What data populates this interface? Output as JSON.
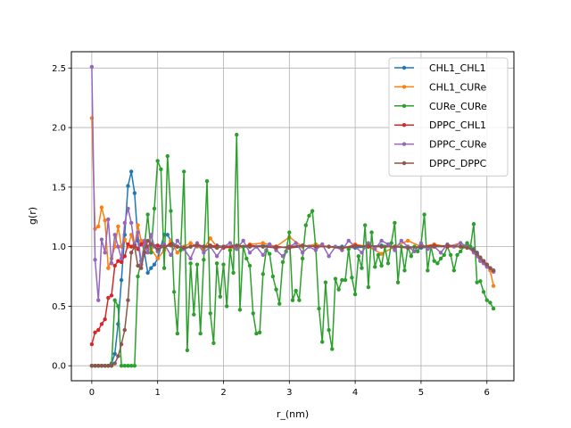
{
  "chart_data": {
    "type": "line",
    "title": "",
    "xlabel": "r_(nm)",
    "ylabel": "g(r)",
    "xlim": [
      -0.31,
      6.41
    ],
    "ylim": [
      -0.126,
      2.637
    ],
    "xticks": [
      0,
      1,
      2,
      3,
      4,
      5,
      6
    ],
    "yticks": [
      0.0,
      0.5,
      1.0,
      1.5,
      2.0,
      2.5
    ],
    "xtick_labels": [
      "0",
      "1",
      "2",
      "3",
      "4",
      "5",
      "6"
    ],
    "ytick_labels": [
      "0.0",
      "0.5",
      "1.0",
      "1.5",
      "2.0",
      "2.5"
    ],
    "grid": true,
    "legend_position": "upper-right",
    "series": [
      {
        "name": "CHL1_CHL1",
        "color": "#1f77b4",
        "x": [
          0.0,
          0.05,
          0.1,
          0.15,
          0.2,
          0.25,
          0.3,
          0.35,
          0.4,
          0.45,
          0.5,
          0.55,
          0.6,
          0.65,
          0.7,
          0.75,
          0.8,
          0.85,
          0.9,
          0.95,
          1.0,
          1.05,
          1.1,
          1.15,
          1.2,
          1.3,
          1.4,
          1.5,
          1.6,
          1.7,
          1.8,
          1.9,
          2.0,
          2.2,
          2.4,
          2.6,
          2.8,
          3.0,
          3.2,
          3.4,
          3.6,
          3.8,
          4.0,
          4.2,
          4.4,
          4.6,
          4.8,
          5.0,
          5.2,
          5.4,
          5.6,
          5.7,
          5.8,
          5.85,
          5.9,
          5.95,
          6.0,
          6.05,
          6.1
        ],
        "y": [
          0.0,
          0.0,
          0.0,
          0.0,
          0.0,
          0.0,
          0.02,
          0.1,
          0.35,
          0.72,
          1.1,
          1.51,
          1.63,
          1.45,
          1.05,
          0.85,
          0.95,
          0.78,
          0.82,
          0.85,
          0.9,
          1.0,
          1.1,
          1.1,
          1.05,
          1.0,
          0.98,
          1.0,
          1.02,
          0.99,
          1.0,
          1.01,
          1.0,
          0.99,
          1.0,
          1.01,
          1.0,
          0.99,
          1.0,
          1.01,
          1.0,
          1.0,
          0.99,
          1.0,
          1.01,
          1.0,
          1.0,
          0.99,
          1.0,
          1.0,
          1.0,
          1.0,
          0.98,
          0.95,
          0.9,
          0.88,
          0.85,
          0.82,
          0.8
        ]
      },
      {
        "name": "CHL1_CURe",
        "color": "#ff7f0e",
        "x": [
          0.0,
          0.05,
          0.1,
          0.15,
          0.2,
          0.25,
          0.3,
          0.35,
          0.4,
          0.45,
          0.5,
          0.55,
          0.6,
          0.65,
          0.7,
          0.75,
          0.8,
          0.9,
          1.0,
          1.1,
          1.2,
          1.3,
          1.4,
          1.5,
          1.6,
          1.7,
          1.8,
          1.9,
          2.0,
          2.2,
          2.4,
          2.6,
          2.8,
          3.0,
          3.2,
          3.4,
          3.6,
          3.8,
          4.0,
          4.2,
          4.4,
          4.6,
          4.8,
          5.0,
          5.2,
          5.4,
          5.6,
          5.7,
          5.8,
          5.85,
          5.9,
          5.95,
          6.0,
          6.05,
          6.1
        ],
        "y": [
          2.08,
          1.15,
          1.17,
          1.33,
          1.22,
          0.82,
          0.9,
          1.0,
          1.17,
          1.0,
          1.06,
          1.0,
          1.1,
          1.0,
          1.18,
          1.05,
          0.95,
          0.98,
          0.9,
          0.97,
          1.05,
          0.95,
          1.0,
          1.03,
          1.0,
          0.98,
          1.07,
          1.0,
          1.0,
          0.98,
          1.02,
          1.03,
          1.0,
          1.08,
          1.0,
          1.02,
          1.0,
          0.98,
          1.02,
          1.0,
          0.94,
          1.0,
          1.05,
          1.0,
          1.02,
          1.0,
          1.03,
          1.0,
          0.96,
          0.92,
          0.88,
          0.86,
          0.84,
          0.8,
          0.67
        ]
      },
      {
        "name": "CURe_CURe",
        "color": "#2ca02c",
        "x": [
          0.0,
          0.05,
          0.1,
          0.15,
          0.2,
          0.25,
          0.3,
          0.35,
          0.4,
          0.45,
          0.5,
          0.55,
          0.6,
          0.65,
          0.7,
          0.75,
          0.8,
          0.85,
          0.9,
          0.95,
          1.0,
          1.05,
          1.1,
          1.15,
          1.2,
          1.25,
          1.3,
          1.35,
          1.4,
          1.45,
          1.5,
          1.55,
          1.6,
          1.65,
          1.7,
          1.75,
          1.8,
          1.85,
          1.9,
          1.95,
          2.0,
          2.05,
          2.1,
          2.15,
          2.2,
          2.25,
          2.3,
          2.35,
          2.4,
          2.45,
          2.5,
          2.55,
          2.6,
          2.65,
          2.7,
          2.75,
          2.8,
          2.85,
          2.9,
          2.95,
          3.0,
          3.05,
          3.1,
          3.15,
          3.2,
          3.25,
          3.3,
          3.35,
          3.4,
          3.45,
          3.5,
          3.55,
          3.6,
          3.65,
          3.7,
          3.75,
          3.8,
          3.85,
          3.9,
          3.95,
          4.0,
          4.05,
          4.1,
          4.15,
          4.2,
          4.25,
          4.3,
          4.35,
          4.4,
          4.45,
          4.5,
          4.55,
          4.6,
          4.65,
          4.7,
          4.75,
          4.8,
          4.85,
          4.9,
          4.95,
          5.0,
          5.05,
          5.1,
          5.15,
          5.2,
          5.25,
          5.3,
          5.35,
          5.4,
          5.45,
          5.5,
          5.55,
          5.6,
          5.65,
          5.7,
          5.75,
          5.8,
          5.85,
          5.9,
          5.95,
          6.0,
          6.05,
          6.1
        ],
        "y": [
          0.0,
          0.0,
          0.0,
          0.0,
          0.0,
          0.0,
          0.0,
          0.55,
          0.5,
          0.0,
          0.0,
          0.0,
          0.0,
          0.0,
          0.75,
          0.88,
          1.0,
          1.27,
          0.95,
          1.32,
          1.72,
          1.65,
          0.82,
          1.76,
          1.3,
          0.62,
          0.27,
          0.97,
          1.63,
          0.13,
          0.86,
          0.43,
          0.85,
          0.27,
          0.89,
          1.55,
          0.44,
          0.19,
          0.86,
          0.58,
          0.85,
          0.5,
          0.97,
          0.78,
          1.94,
          0.47,
          1.0,
          0.9,
          0.84,
          0.44,
          0.27,
          0.28,
          0.77,
          0.97,
          0.94,
          0.75,
          0.64,
          0.52,
          0.87,
          0.96,
          1.12,
          0.55,
          0.63,
          0.55,
          0.9,
          1.18,
          1.26,
          1.3,
          1.0,
          0.48,
          0.2,
          0.7,
          0.3,
          0.14,
          0.73,
          0.64,
          0.72,
          0.72,
          0.98,
          0.74,
          0.6,
          0.92,
          0.82,
          1.18,
          0.66,
          1.12,
          0.83,
          0.93,
          0.84,
          1.0,
          0.86,
          1.03,
          1.2,
          0.7,
          1.0,
          0.8,
          1.0,
          0.92,
          1.0,
          0.96,
          1.02,
          1.27,
          0.8,
          1.0,
          0.88,
          0.86,
          0.9,
          0.93,
          1.0,
          0.93,
          0.8,
          0.93,
          0.96,
          1.0,
          1.03,
          1.0,
          1.19,
          0.7,
          0.71,
          0.62,
          0.55,
          0.53,
          0.48
        ]
      },
      {
        "name": "DPPC_CHL1",
        "color": "#d62728",
        "x": [
          0.0,
          0.05,
          0.1,
          0.15,
          0.2,
          0.25,
          0.3,
          0.35,
          0.4,
          0.45,
          0.5,
          0.55,
          0.6,
          0.65,
          0.7,
          0.75,
          0.8,
          0.85,
          0.9,
          1.0,
          1.1,
          1.2,
          1.3,
          1.4,
          1.5,
          1.6,
          1.7,
          1.8,
          1.9,
          2.0,
          2.2,
          2.4,
          2.6,
          2.8,
          3.0,
          3.2,
          3.4,
          3.6,
          3.8,
          4.0,
          4.2,
          4.4,
          4.6,
          4.8,
          5.0,
          5.2,
          5.4,
          5.6,
          5.7,
          5.8,
          5.85,
          5.9,
          5.95,
          6.0,
          6.05,
          6.1
        ],
        "y": [
          0.18,
          0.28,
          0.3,
          0.35,
          0.39,
          0.57,
          0.59,
          0.84,
          0.88,
          0.87,
          0.92,
          1.02,
          1.0,
          1.02,
          0.98,
          1.02,
          1.04,
          1.0,
          1.02,
          1.01,
          1.0,
          1.02,
          1.0,
          0.99,
          1.0,
          1.02,
          1.0,
          1.01,
          1.0,
          0.99,
          1.0,
          1.01,
          1.0,
          1.0,
          0.99,
          1.01,
          1.0,
          1.0,
          0.99,
          1.01,
          1.0,
          1.0,
          1.0,
          0.99,
          1.0,
          1.01,
          1.0,
          1.0,
          0.99,
          0.97,
          0.93,
          0.9,
          0.87,
          0.84,
          0.82,
          0.79
        ]
      },
      {
        "name": "DPPC_CURe",
        "color": "#9467bd",
        "x": [
          0.0,
          0.05,
          0.1,
          0.15,
          0.2,
          0.25,
          0.3,
          0.35,
          0.4,
          0.45,
          0.5,
          0.55,
          0.6,
          0.65,
          0.7,
          0.75,
          0.8,
          0.85,
          0.9,
          0.95,
          1.0,
          1.1,
          1.2,
          1.3,
          1.4,
          1.5,
          1.6,
          1.7,
          1.8,
          1.9,
          2.0,
          2.1,
          2.2,
          2.3,
          2.4,
          2.5,
          2.6,
          2.7,
          2.8,
          2.9,
          3.0,
          3.1,
          3.2,
          3.3,
          3.4,
          3.5,
          3.6,
          3.7,
          3.8,
          3.9,
          4.0,
          4.1,
          4.2,
          4.3,
          4.4,
          4.5,
          4.6,
          4.7,
          4.8,
          4.9,
          5.0,
          5.1,
          5.2,
          5.3,
          5.4,
          5.5,
          5.6,
          5.7,
          5.8,
          5.85,
          5.9,
          5.95,
          6.0,
          6.05,
          6.1
        ],
        "y": [
          2.51,
          0.89,
          0.55,
          1.06,
          0.95,
          1.23,
          0.86,
          1.1,
          1.0,
          0.9,
          1.2,
          1.32,
          1.2,
          1.0,
          1.12,
          0.85,
          1.05,
          0.95,
          1.1,
          1.0,
          0.96,
          1.02,
          0.93,
          1.05,
          0.98,
          0.9,
          1.03,
          0.95,
          1.0,
          0.92,
          1.0,
          1.03,
          0.98,
          1.05,
          0.95,
          1.0,
          0.93,
          1.02,
          0.97,
          0.92,
          1.0,
          1.03,
          0.95,
          1.0,
          0.97,
          1.02,
          0.92,
          1.0,
          0.97,
          1.05,
          1.0,
          0.95,
          1.03,
          0.98,
          1.05,
          1.02,
          0.97,
          1.05,
          1.0,
          0.96,
          1.03,
          0.98,
          1.0,
          0.95,
          1.02,
          1.0,
          1.03,
          1.0,
          0.95,
          0.92,
          0.88,
          0.86,
          0.83,
          0.82,
          0.79
        ]
      },
      {
        "name": "DPPC_DPPC",
        "color": "#8c564b",
        "x": [
          0.0,
          0.05,
          0.1,
          0.15,
          0.2,
          0.25,
          0.3,
          0.35,
          0.4,
          0.45,
          0.5,
          0.55,
          0.6,
          0.65,
          0.7,
          0.75,
          0.8,
          0.85,
          0.9,
          1.0,
          1.1,
          1.2,
          1.3,
          1.4,
          1.5,
          1.6,
          1.7,
          1.8,
          1.9,
          2.0,
          2.2,
          2.4,
          2.6,
          2.8,
          3.0,
          3.2,
          3.4,
          3.6,
          3.8,
          4.0,
          4.2,
          4.4,
          4.6,
          4.8,
          5.0,
          5.2,
          5.4,
          5.6,
          5.7,
          5.8,
          5.85,
          5.9,
          5.95,
          6.0,
          6.05,
          6.1
        ],
        "y": [
          0.0,
          0.0,
          0.0,
          0.0,
          0.0,
          0.0,
          0.0,
          0.02,
          0.08,
          0.18,
          0.3,
          0.55,
          0.95,
          1.0,
          0.84,
          0.82,
          0.95,
          1.05,
          1.02,
          0.98,
          1.0,
          1.01,
          1.0,
          0.99,
          1.0,
          1.01,
          1.0,
          1.0,
          0.99,
          1.0,
          1.01,
          1.0,
          1.0,
          0.99,
          1.0,
          1.01,
          1.0,
          1.0,
          0.99,
          1.0,
          1.01,
          1.0,
          1.0,
          0.99,
          1.0,
          1.0,
          1.01,
          1.0,
          0.99,
          0.97,
          0.94,
          0.91,
          0.88,
          0.85,
          0.82,
          0.8
        ]
      }
    ]
  }
}
